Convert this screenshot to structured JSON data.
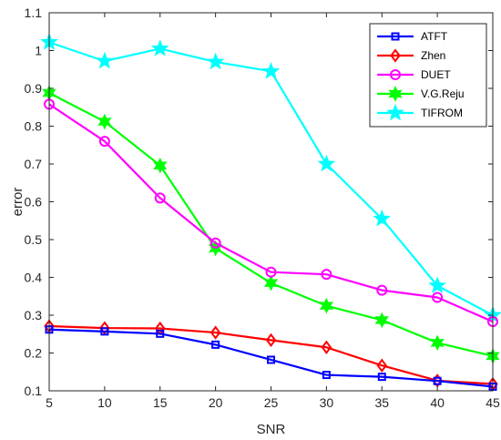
{
  "chart_data": {
    "type": "line",
    "title": "",
    "xlabel": "SNR",
    "ylabel": "error",
    "xlim": [
      5,
      45
    ],
    "ylim": [
      0.1,
      1.1
    ],
    "x_ticks": [
      "5",
      "10",
      "15",
      "20",
      "25",
      "30",
      "35",
      "40",
      "45"
    ],
    "y_ticks": [
      "0.1",
      "0.2",
      "0.3",
      "0.4",
      "0.5",
      "0.6",
      "0.7",
      "0.8",
      "0.9",
      "1",
      "1.1"
    ],
    "x": [
      5,
      10,
      15,
      20,
      25,
      30,
      35,
      40,
      45
    ],
    "grid": false,
    "legend_position": "top-right",
    "series": [
      {
        "name": "ATFT",
        "color": "#0000ff",
        "marker": "square",
        "values": [
          0.262,
          0.257,
          0.251,
          0.222,
          0.182,
          0.142,
          0.137,
          0.126,
          0.111
        ]
      },
      {
        "name": "Zhen",
        "color": "#ff0000",
        "marker": "diamond",
        "values": [
          0.271,
          0.266,
          0.265,
          0.254,
          0.234,
          0.215,
          0.167,
          0.127,
          0.118
        ]
      },
      {
        "name": "DUET",
        "color": "#ff00ff",
        "marker": "circle",
        "values": [
          0.858,
          0.76,
          0.61,
          0.491,
          0.414,
          0.408,
          0.366,
          0.347,
          0.283
        ]
      },
      {
        "name": "V.G.Reju",
        "color": "#00ff00",
        "marker": "hexagram",
        "values": [
          0.888,
          0.812,
          0.696,
          0.477,
          0.385,
          0.325,
          0.287,
          0.227,
          0.192
        ]
      },
      {
        "name": "TIFROM",
        "color": "#00ffff",
        "marker": "pentagram",
        "values": [
          1.022,
          0.972,
          1.005,
          0.97,
          0.945,
          0.7,
          0.555,
          0.378,
          0.3
        ]
      }
    ]
  }
}
